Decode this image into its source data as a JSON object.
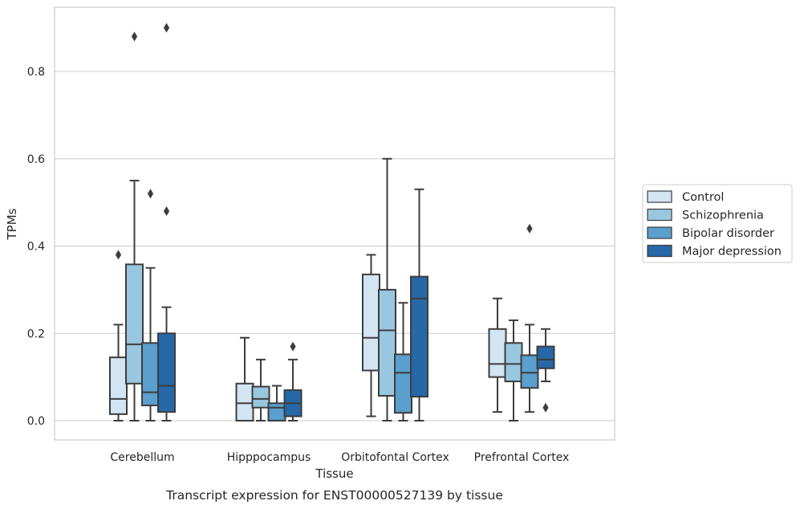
{
  "chart_data": {
    "type": "box",
    "xlabel": "Tissue",
    "ylabel": "TPMs",
    "caption": "Transcript expression for ENST00000527139 by tissue",
    "ylim": [
      -0.043,
      0.95
    ],
    "yticks": [
      0.0,
      0.2,
      0.4,
      0.6,
      0.8
    ],
    "ytick_labels": [
      "0.0",
      "0.2",
      "0.4",
      "0.6",
      "0.8"
    ],
    "grid": "horizontal",
    "legend_position": "right",
    "categories": [
      "Cerebellum",
      "Hipppocampus",
      "Orbitofontal Cortex",
      "Prefrontal Cortex"
    ],
    "series": [
      {
        "name": "Control",
        "color": "#d3e4f3",
        "boxes": [
          {
            "whislo": 0.0,
            "q1": 0.015,
            "med": 0.05,
            "q3": 0.145,
            "whishi": 0.22,
            "fliers": [
              0.38
            ]
          },
          {
            "whislo": 0.0,
            "q1": 0.0,
            "med": 0.04,
            "q3": 0.085,
            "whishi": 0.19,
            "fliers": []
          },
          {
            "whislo": 0.01,
            "q1": 0.115,
            "med": 0.19,
            "q3": 0.335,
            "whishi": 0.38,
            "fliers": []
          },
          {
            "whislo": 0.02,
            "q1": 0.1,
            "med": 0.13,
            "q3": 0.21,
            "whishi": 0.28,
            "fliers": []
          }
        ]
      },
      {
        "name": "Schizophrenia",
        "color": "#9ac7e0",
        "boxes": [
          {
            "whislo": 0.0,
            "q1": 0.085,
            "med": 0.175,
            "q3": 0.358,
            "whishi": 0.55,
            "fliers": [
              0.88
            ]
          },
          {
            "whislo": 0.0,
            "q1": 0.03,
            "med": 0.05,
            "q3": 0.078,
            "whishi": 0.14,
            "fliers": []
          },
          {
            "whislo": 0.0,
            "q1": 0.057,
            "med": 0.207,
            "q3": 0.3,
            "whishi": 0.6,
            "fliers": []
          },
          {
            "whislo": 0.0,
            "q1": 0.09,
            "med": 0.13,
            "q3": 0.178,
            "whishi": 0.23,
            "fliers": []
          }
        ]
      },
      {
        "name": "Bipolar disorder",
        "color": "#5a9fcd",
        "boxes": [
          {
            "whislo": 0.0,
            "q1": 0.035,
            "med": 0.065,
            "q3": 0.178,
            "whishi": 0.35,
            "fliers": [
              0.52
            ]
          },
          {
            "whislo": 0.0,
            "q1": 0.0,
            "med": 0.03,
            "q3": 0.04,
            "whishi": 0.08,
            "fliers": []
          },
          {
            "whislo": 0.0,
            "q1": 0.018,
            "med": 0.11,
            "q3": 0.152,
            "whishi": 0.27,
            "fliers": []
          },
          {
            "whislo": 0.02,
            "q1": 0.075,
            "med": 0.11,
            "q3": 0.15,
            "whishi": 0.22,
            "fliers": [
              0.44
            ]
          }
        ]
      },
      {
        "name": "Major depression",
        "color": "#2668a8",
        "boxes": [
          {
            "whislo": 0.0,
            "q1": 0.02,
            "med": 0.08,
            "q3": 0.2,
            "whishi": 0.26,
            "fliers": [
              0.48,
              0.9
            ]
          },
          {
            "whislo": 0.0,
            "q1": 0.01,
            "med": 0.04,
            "q3": 0.07,
            "whishi": 0.14,
            "fliers": [
              0.17
            ]
          },
          {
            "whislo": 0.0,
            "q1": 0.055,
            "med": 0.28,
            "q3": 0.33,
            "whishi": 0.53,
            "fliers": []
          },
          {
            "whislo": 0.09,
            "q1": 0.12,
            "med": 0.14,
            "q3": 0.17,
            "whishi": 0.21,
            "fliers": [
              0.03
            ]
          }
        ]
      }
    ]
  }
}
